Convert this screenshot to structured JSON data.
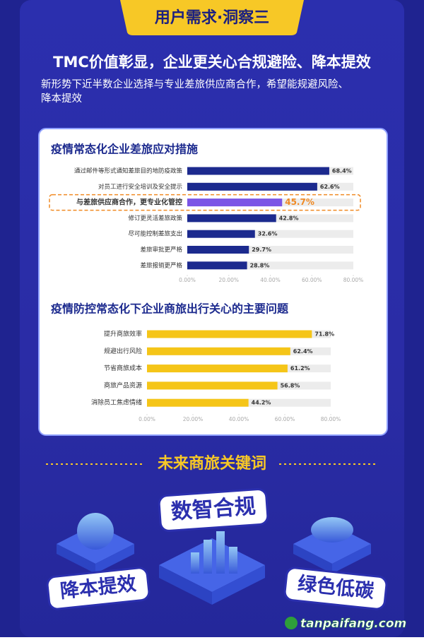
{
  "header": {
    "tag": "用户需求·洞察三",
    "title": "TMC价值彰显，企业更关心合规避险、降本提效",
    "subtitle_lines": [
      "新形势下近半数企业选择与专业差旅供应商合作，希望能规避风险、",
      "降本提效"
    ]
  },
  "chart_data": [
    {
      "type": "hbar",
      "title": "疫情常态化企业差旅应对措施",
      "categories": [
        "通过邮件等形式通知差旅目的地防疫政策",
        "对员工进行安全培训及安全提示",
        "与差旅供应商合作，更专业化管控",
        "修订更灵活差旅政策",
        "尽可能控制差旅支出",
        "差旅审批更严格",
        "差旅报销更严格"
      ],
      "values": [
        68.4,
        62.6,
        45.7,
        42.8,
        32.6,
        29.7,
        28.8
      ],
      "value_labels": [
        "68.4%",
        "62.6%",
        "45.7%",
        "42.8%",
        "32.6%",
        "29.7%",
        "28.8%"
      ],
      "color": "#1c2a8e",
      "colors": [
        "#1c2a8e",
        "#1c2a8e",
        "#7b55e6",
        "#1c2a8e",
        "#1c2a8e",
        "#1c2a8e",
        "#1c2a8e"
      ],
      "xlim": [
        0,
        80
      ],
      "xticks": [
        {
          "value": 0,
          "label": "0.00%"
        },
        {
          "value": 20,
          "label": "20.00%"
        },
        {
          "value": 40,
          "label": "40.00%"
        },
        {
          "value": 60,
          "label": "60.00%"
        },
        {
          "value": 80,
          "label": "80.00%"
        }
      ]
    },
    {
      "type": "hbar",
      "title": "疫情防控常态化下企业商旅出行关心的主要问题",
      "categories": [
        "提升商旅效率",
        "规避出行风险",
        "节省商旅成本",
        "商旅产品资源",
        "消除员工焦虑情绪"
      ],
      "values": [
        71.8,
        62.4,
        61.2,
        56.8,
        44.2
      ],
      "value_labels": [
        "71.8%",
        "62.4%",
        "61.2%",
        "56.8%",
        "44.2%"
      ],
      "color": "#f5c518",
      "colors": [
        "#f5c518",
        "#f5c518",
        "#f5c518",
        "#f5c518",
        "#f5c518"
      ],
      "xlim": [
        0,
        80
      ],
      "xticks": [
        {
          "value": 0,
          "label": "0.00%"
        },
        {
          "value": 20,
          "label": "20.00%"
        },
        {
          "value": 40,
          "label": "40.00%"
        },
        {
          "value": 60,
          "label": "60.00%"
        },
        {
          "value": 80,
          "label": "80.00%"
        }
      ]
    }
  ],
  "keywords": {
    "title": "未来商旅关键词",
    "items": [
      "数智合规",
      "降本提效",
      "绿色低碳"
    ]
  },
  "watermark": "tanpaifang.com"
}
